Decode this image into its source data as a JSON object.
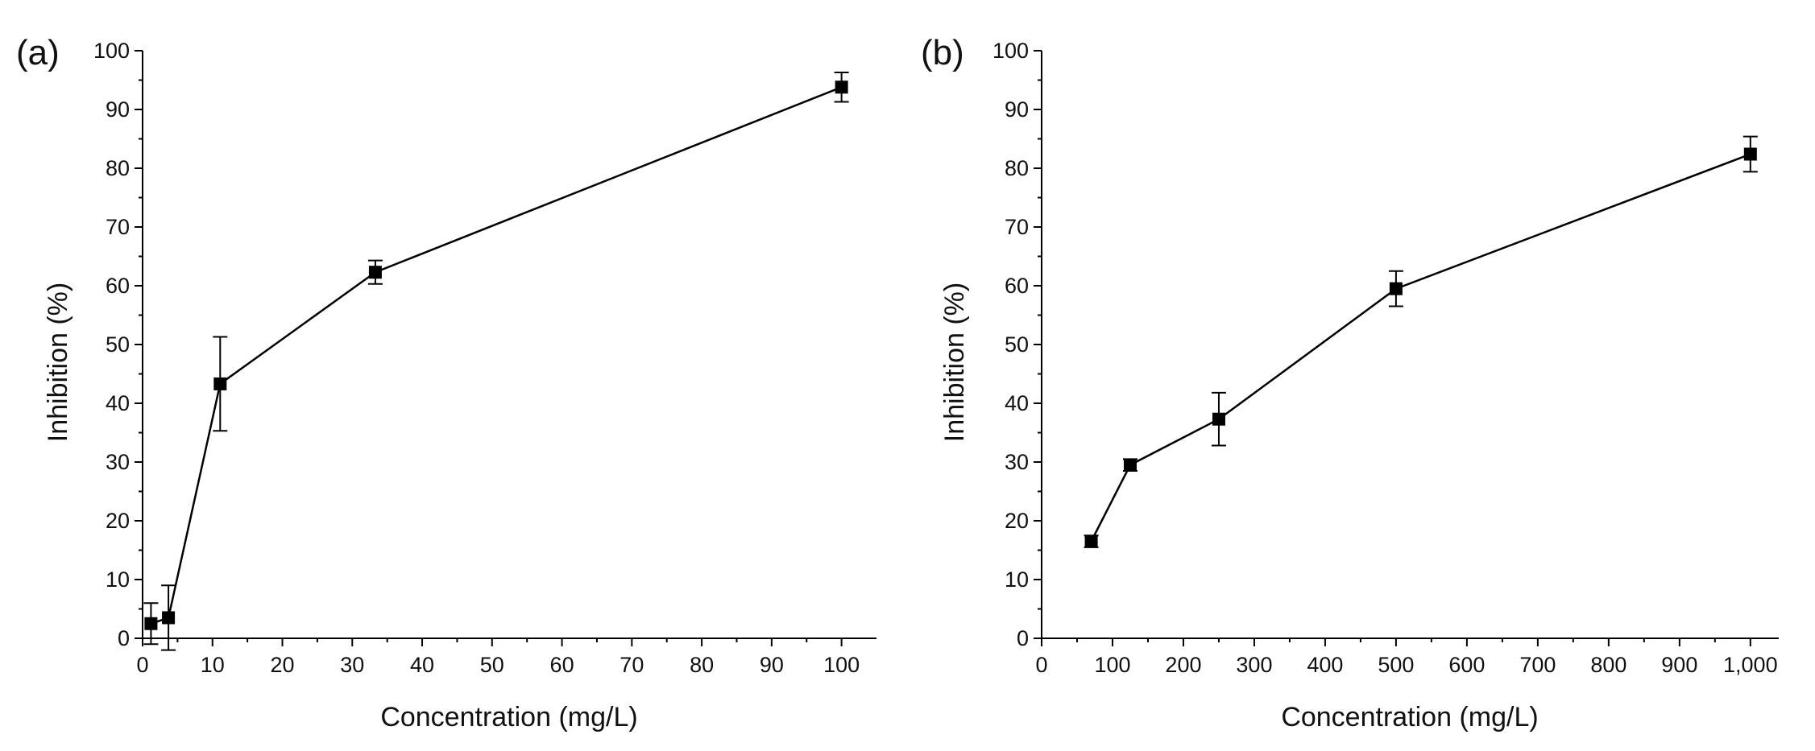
{
  "colors": {
    "ink": "#000000",
    "background": "#ffffff"
  },
  "chart_data": [
    {
      "type": "line",
      "panel_label": "(a)",
      "title": "",
      "xlabel": "Concentration (mg/L)",
      "ylabel": "Inhibition (%)",
      "xlim": [
        0,
        105
      ],
      "ylim": [
        0,
        100
      ],
      "x_ticks": [
        0,
        10,
        20,
        30,
        40,
        50,
        60,
        70,
        80,
        90,
        100
      ],
      "x_tick_labels": [
        "0",
        "10",
        "20",
        "30",
        "40",
        "50",
        "60",
        "70",
        "80",
        "90",
        "100"
      ],
      "y_ticks": [
        0,
        10,
        20,
        30,
        40,
        50,
        60,
        70,
        80,
        90,
        100
      ],
      "y_tick_labels": [
        "0",
        "10",
        "20",
        "30",
        "40",
        "50",
        "60",
        "70",
        "80",
        "90",
        "100"
      ],
      "grid": false,
      "marker": "square",
      "series": [
        {
          "name": "Inhibition",
          "x": [
            1.2,
            3.7,
            11.1,
            33.3,
            100
          ],
          "y": [
            2.5,
            3.5,
            43.3,
            62.3,
            93.8
          ],
          "error": [
            3.5,
            5.5,
            8.0,
            2.0,
            2.5
          ]
        }
      ]
    },
    {
      "type": "line",
      "panel_label": "(b)",
      "title": "",
      "xlabel": "Concentration (mg/L)",
      "ylabel": "Inhibition (%)",
      "xlim": [
        0,
        1040
      ],
      "ylim": [
        0,
        100
      ],
      "x_ticks": [
        0,
        100,
        200,
        300,
        400,
        500,
        600,
        700,
        800,
        900,
        1000
      ],
      "x_tick_labels": [
        "0",
        "100",
        "200",
        "300",
        "400",
        "500",
        "600",
        "700",
        "800",
        "900",
        "1,000"
      ],
      "y_ticks": [
        0,
        10,
        20,
        30,
        40,
        50,
        60,
        70,
        80,
        90,
        100
      ],
      "y_tick_labels": [
        "0",
        "10",
        "20",
        "30",
        "40",
        "50",
        "60",
        "70",
        "80",
        "90",
        "100"
      ],
      "grid": false,
      "marker": "square",
      "series": [
        {
          "name": "Inhibition",
          "x": [
            70,
            125,
            250,
            500,
            1000
          ],
          "y": [
            16.5,
            29.5,
            37.3,
            59.5,
            82.4
          ],
          "error": [
            1.0,
            1.0,
            4.5,
            3.0,
            3.0
          ]
        }
      ]
    }
  ]
}
